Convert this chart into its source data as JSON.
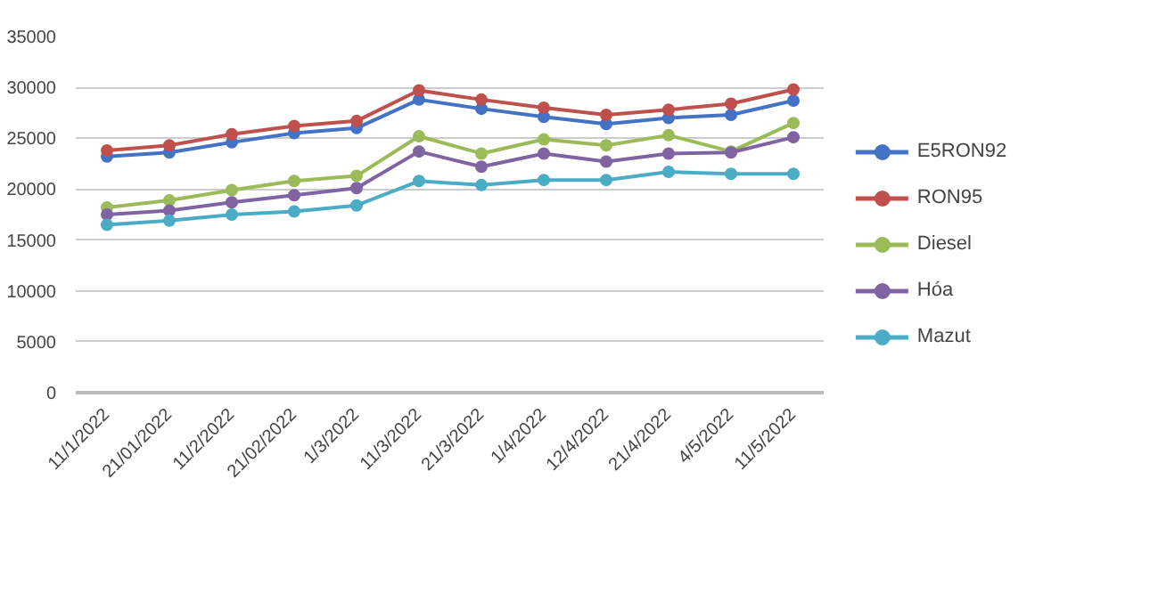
{
  "chart_data": {
    "type": "line",
    "categories": [
      "11/1/2022",
      "21/01/2022",
      "11/2/2022",
      "21/02/2022",
      "1/3/2022",
      "11/3/2022",
      "21/3/2022",
      "1/4/2022",
      "12/4/2022",
      "21/4/2022",
      "4/5/2022",
      "11/5/2022"
    ],
    "series": [
      {
        "name": "E5RON92",
        "color": "#4472c4",
        "values": [
          23200,
          23600,
          24600,
          25500,
          26000,
          28800,
          27900,
          27100,
          26400,
          27000,
          27300,
          28700
        ]
      },
      {
        "name": "RON95",
        "color": "#c0504d",
        "values": [
          23800,
          24300,
          25400,
          26200,
          26700,
          29700,
          28800,
          28000,
          27300,
          27800,
          28400,
          29800
        ]
      },
      {
        "name": "Diesel",
        "color": "#9bbb59",
        "values": [
          18200,
          18900,
          19900,
          20800,
          21300,
          25200,
          23500,
          24900,
          24300,
          25300,
          23700,
          26500
        ]
      },
      {
        "name": "Hóa",
        "color": "#8064a2",
        "values": [
          17500,
          17900,
          18700,
          19400,
          20100,
          23700,
          22200,
          23500,
          22700,
          23500,
          23600,
          25100
        ]
      },
      {
        "name": "Mazut",
        "color": "#4bacc6",
        "values": [
          16500,
          16900,
          17500,
          17800,
          18400,
          20800,
          20400,
          20900,
          20900,
          21700,
          21500,
          21500
        ]
      }
    ],
    "ylim": [
      0,
      35000
    ],
    "yticks": [
      0,
      5000,
      10000,
      15000,
      20000,
      25000,
      30000,
      35000
    ],
    "grid": "y",
    "legend": "right",
    "marker": "circle",
    "line_style": "solid"
  }
}
